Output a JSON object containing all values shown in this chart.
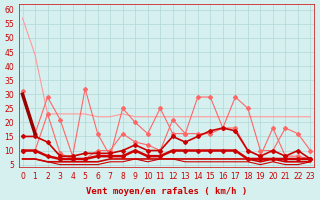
{
  "bg_color": "#d6f0f0",
  "grid_color": "#b0d8d8",
  "line_color_light": "#ff9999",
  "line_color_mid": "#ff6666",
  "line_color_dark": "#cc0000",
  "line_color_darkest": "#990000",
  "xlabel": "Vent moyen/en rafales ( km/h )",
  "xlabel_color": "#cc0000",
  "yticks": [
    5,
    10,
    15,
    20,
    25,
    30,
    35,
    40,
    45,
    50,
    55,
    60
  ],
  "xticks": [
    0,
    1,
    2,
    3,
    4,
    5,
    6,
    7,
    8,
    9,
    10,
    11,
    12,
    13,
    14,
    15,
    16,
    17,
    18,
    19,
    20,
    21,
    22,
    23
  ],
  "ylim": [
    4,
    62
  ],
  "xlim": [
    -0.3,
    23.3
  ],
  "series": {
    "max_gust": [
      57,
      44,
      23,
      23,
      23,
      23,
      22,
      22,
      23,
      22,
      22,
      22,
      22,
      22,
      22,
      22,
      22,
      22,
      22,
      22,
      22,
      22,
      22,
      22
    ],
    "p75_gust": [
      31,
      16,
      29,
      21,
      8,
      32,
      16,
      8,
      25,
      20,
      16,
      25,
      16,
      16,
      29,
      29,
      18,
      29,
      25,
      10,
      10,
      18,
      16,
      10
    ],
    "median_gust": [
      10,
      10,
      23,
      9,
      7,
      7,
      10,
      10,
      16,
      13,
      12,
      10,
      21,
      16,
      16,
      16,
      18,
      18,
      10,
      8,
      18,
      8,
      8,
      7
    ],
    "p25_gust": [
      10,
      10,
      10,
      9,
      7,
      7,
      10,
      10,
      10,
      10,
      10,
      10,
      10,
      10,
      10,
      10,
      10,
      10,
      10,
      7,
      10,
      7,
      7,
      7
    ],
    "min_gust": [
      10,
      10,
      10,
      9,
      7,
      7,
      10,
      10,
      10,
      10,
      10,
      10,
      10,
      10,
      10,
      10,
      10,
      10,
      10,
      7,
      10,
      7,
      7,
      7
    ],
    "mean_wind": [
      30,
      16,
      0,
      0,
      0,
      0,
      0,
      0,
      0,
      0,
      0,
      0,
      0,
      0,
      0,
      0,
      0,
      0,
      0,
      0,
      0,
      0,
      0,
      0
    ],
    "p75_wind": [
      15,
      15,
      13,
      8,
      8,
      9,
      9,
      9,
      10,
      12,
      10,
      10,
      15,
      13,
      15,
      17,
      18,
      17,
      10,
      8,
      10,
      8,
      10,
      7
    ],
    "median_wind": [
      10,
      10,
      8,
      7,
      7,
      7,
      8,
      8,
      8,
      10,
      8,
      8,
      10,
      10,
      10,
      10,
      10,
      10,
      7,
      7,
      7,
      7,
      7,
      7
    ],
    "p25_wind": [
      7,
      7,
      6,
      6,
      6,
      6,
      6,
      7,
      7,
      7,
      7,
      7,
      7,
      7,
      7,
      7,
      7,
      7,
      7,
      6,
      7,
      6,
      6,
      6
    ],
    "min_wind": [
      7,
      7,
      6,
      5,
      5,
      5,
      5,
      6,
      6,
      7,
      6,
      7,
      7,
      6,
      6,
      6,
      6,
      6,
      6,
      5,
      6,
      5,
      5,
      6
    ]
  }
}
